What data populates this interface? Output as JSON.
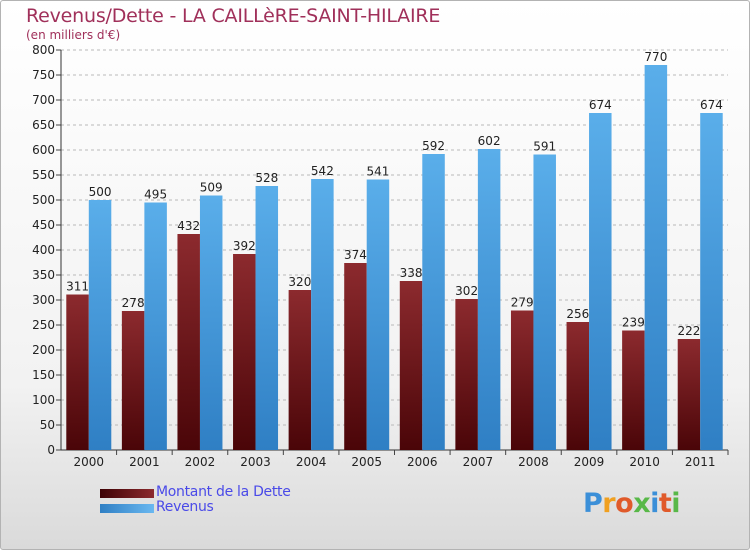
{
  "colors": {
    "title": "#a0305a",
    "legend_text": "#4a4ae8",
    "dette": "#7a1a1e",
    "revenus": "#4a9ee0",
    "grid": "#b9b9b9"
  },
  "logo": {
    "text": "Proxiti",
    "icon": "proxiti-logo"
  },
  "chart_data": {
    "type": "bar",
    "title": "Revenus/Dette - LA CAILLèRE-SAINT-HILAIRE",
    "subtitle": "(en milliers d'€)",
    "xlabel": "",
    "ylabel": "",
    "ylim": [
      0,
      800
    ],
    "ytick_step": 50,
    "grid": true,
    "legend_position": "bottom-left",
    "categories": [
      "2000",
      "2001",
      "2002",
      "2003",
      "2004",
      "2005",
      "2006",
      "2007",
      "2008",
      "2009",
      "2010",
      "2011"
    ],
    "series": [
      {
        "name": "Montant de la Dette",
        "values": [
          311,
          278,
          432,
          392,
          320,
          374,
          338,
          302,
          279,
          256,
          239,
          222
        ]
      },
      {
        "name": "Revenus",
        "values": [
          500,
          495,
          509,
          528,
          542,
          541,
          592,
          602,
          591,
          674,
          770,
          674
        ]
      }
    ]
  }
}
